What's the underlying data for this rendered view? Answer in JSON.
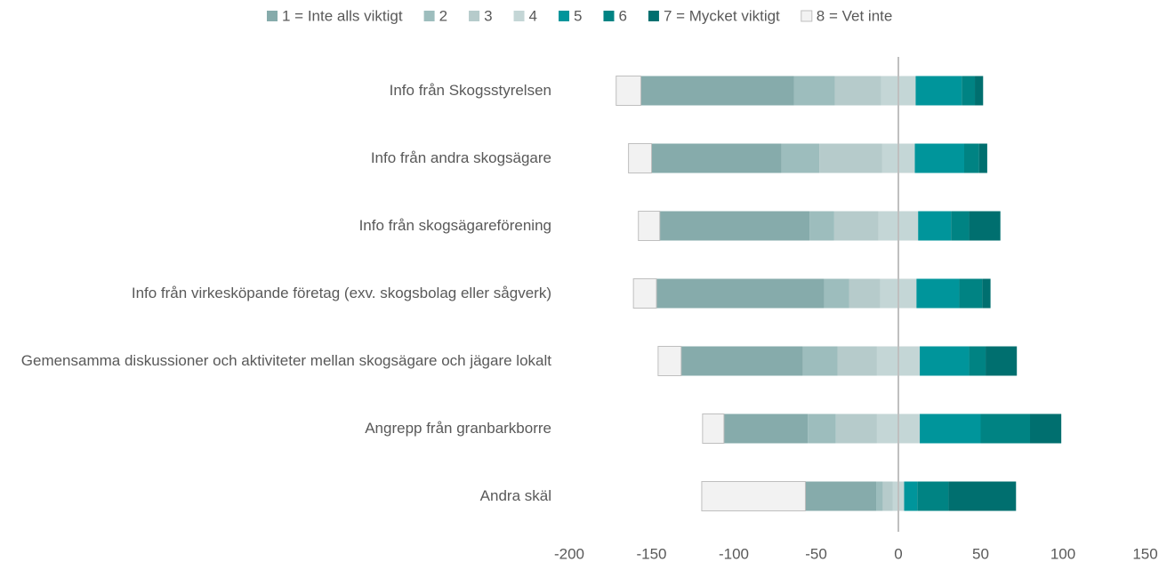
{
  "chart_data": {
    "type": "diverging-bar",
    "categories": [
      "Info från Skogsstyrelsen",
      "Info från andra skogsägare",
      "Info från skogsägareförening",
      "Info från virkesköpande företag (exv. skogsbolag eller sågverk)",
      "Gemensamma diskussioner och aktiviteter mellan skogsägare och jägare lokalt",
      "Angrepp från granbarkborre",
      "Andra skäl"
    ],
    "series": [
      {
        "name": "1 = Inte alls viktigt",
        "color": "#86abab",
        "values": [
          93,
          79,
          91,
          102,
          74,
          51,
          43
        ]
      },
      {
        "name": "2",
        "color": "#9dbdbd",
        "values": [
          25,
          23,
          15,
          15,
          21,
          17,
          4
        ]
      },
      {
        "name": "3",
        "color": "#b6cbcb",
        "values": [
          28,
          38,
          27,
          19,
          24,
          25,
          6
        ]
      },
      {
        "name": "4",
        "color": "#c4d6d6",
        "values": [
          21,
          20,
          24,
          22,
          26,
          26,
          7
        ]
      },
      {
        "name": "5",
        "color": "#00959b",
        "values": [
          28,
          30,
          20,
          26,
          30,
          37,
          8
        ]
      },
      {
        "name": "6",
        "color": "#008383",
        "values": [
          8,
          9,
          11,
          14,
          10,
          30,
          19
        ]
      },
      {
        "name": "7 = Mycket viktigt",
        "color": "#006f6f",
        "values": [
          5,
          5,
          19,
          5,
          19,
          19,
          41
        ]
      },
      {
        "name": "8 = Vet inte",
        "color": "#f2f2f2",
        "values": [
          15,
          14,
          13,
          14,
          14,
          13,
          63
        ]
      }
    ],
    "xlim": [
      -200,
      150
    ],
    "xticks": [
      -200,
      -150,
      -100,
      -50,
      0,
      50,
      100,
      150
    ]
  }
}
